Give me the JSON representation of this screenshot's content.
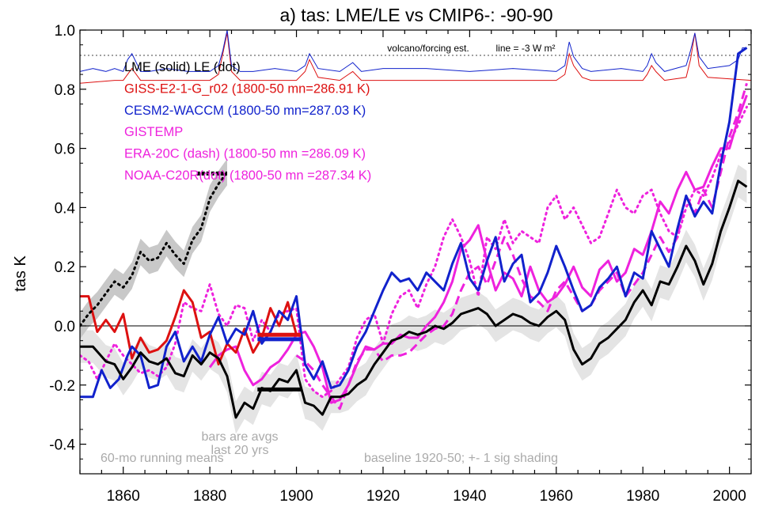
{
  "chart_data": {
    "type": "line",
    "title": "a) tas: LME/LE vs CMIP6-: -90-90",
    "ylabel": "tas K",
    "xlabel": "",
    "xlim": [
      1850,
      2005
    ],
    "ylim": [
      -0.5,
      1.0
    ],
    "x_ticks": [
      1860,
      1880,
      1900,
      1920,
      1940,
      1960,
      1980,
      2000
    ],
    "y_ticks": [
      -0.4,
      -0.2,
      0.0,
      0.2,
      0.4,
      0.6,
      0.8,
      1.0
    ],
    "y_tick_labels": [
      "-0.4",
      "-0.2",
      "0.0",
      "0.2",
      "0.4",
      "0.6",
      "0.8",
      "1.0"
    ],
    "volcano_label": "volcano/forcing est.",
    "volcano_line_label": "line = -3 W m²",
    "legend": [
      {
        "text": "LME (solid)   LE (dot)",
        "color": "#000000"
      },
      {
        "text": "GISS-E2-1-G_r02 (1800-50 mn=286.91 K)",
        "color": "#dd1111"
      },
      {
        "text": "CESM2-WACCM (1800-50 mn=287.03 K)",
        "color": "#1122cc"
      },
      {
        "text": "GISTEMP",
        "color": "#ee22dd"
      },
      {
        "text": "ERA-20C (dash) (1800-50 mn =286.09 K)",
        "color": "#ee22dd"
      },
      {
        "text": "NOAA-C20R(dot) (1800-50 mn =287.34 K)",
        "color": "#ee22dd"
      }
    ],
    "annotations": {
      "bars_line1": "bars are avgs",
      "bars_line2": "last 20 yrs",
      "running": "60-mo running means",
      "baseline": "baseline 1920-50; +- 1 sig shading"
    },
    "colors": {
      "lme": "#000000",
      "giss": "#dd1111",
      "cesm": "#1122cc",
      "obs": "#ee22dd",
      "shade_le": "#c8c8c8",
      "shade_lme": "#e4e4e4"
    },
    "series": [
      {
        "name": "LME",
        "style": "solid",
        "color": "#000000",
        "x": [
          1850,
          1853,
          1856,
          1858,
          1860,
          1862,
          1864,
          1866,
          1868,
          1870,
          1872,
          1874,
          1876,
          1878,
          1880,
          1882,
          1884,
          1886,
          1888,
          1890,
          1892,
          1894,
          1896,
          1898,
          1900,
          1902,
          1904,
          1906,
          1908,
          1910,
          1912,
          1914,
          1916,
          1918,
          1920,
          1922,
          1924,
          1926,
          1928,
          1930,
          1932,
          1934,
          1936,
          1938,
          1940,
          1942,
          1944,
          1946,
          1948,
          1950,
          1952,
          1954,
          1956,
          1958,
          1960,
          1962,
          1964,
          1966,
          1968,
          1970,
          1972,
          1974,
          1976,
          1978,
          1980,
          1982,
          1984,
          1986,
          1988,
          1990,
          1992,
          1994,
          1996,
          1998,
          2000,
          2002,
          2004
        ],
        "y": [
          -0.07,
          -0.07,
          -0.12,
          -0.13,
          -0.18,
          -0.14,
          -0.09,
          -0.12,
          -0.13,
          -0.11,
          -0.16,
          -0.17,
          -0.1,
          -0.13,
          -0.09,
          -0.11,
          -0.17,
          -0.31,
          -0.26,
          -0.28,
          -0.21,
          -0.22,
          -0.18,
          -0.19,
          -0.15,
          -0.26,
          -0.27,
          -0.3,
          -0.24,
          -0.24,
          -0.23,
          -0.2,
          -0.18,
          -0.13,
          -0.09,
          -0.05,
          -0.04,
          -0.02,
          -0.03,
          -0.02,
          0.0,
          -0.01,
          0.01,
          0.04,
          0.05,
          0.06,
          0.04,
          0.0,
          0.02,
          0.04,
          0.03,
          0.01,
          0.0,
          0.03,
          0.05,
          0.02,
          -0.08,
          -0.13,
          -0.11,
          -0.06,
          -0.04,
          -0.01,
          0.02,
          0.08,
          0.12,
          0.07,
          0.15,
          0.14,
          0.2,
          0.27,
          0.22,
          0.14,
          0.21,
          0.32,
          0.4,
          0.49,
          0.47
        ]
      },
      {
        "name": "LE",
        "style": "dot",
        "color": "#000000",
        "x": [
          1850,
          1852,
          1854,
          1856,
          1858,
          1860,
          1862,
          1864,
          1866,
          1868,
          1870,
          1872,
          1874,
          1876,
          1878,
          1880,
          1882,
          1884
        ],
        "y": [
          0.0,
          0.04,
          0.07,
          0.11,
          0.15,
          0.13,
          0.17,
          0.25,
          0.22,
          0.23,
          0.28,
          0.24,
          0.21,
          0.29,
          0.33,
          0.43,
          0.48,
          0.52
        ]
      },
      {
        "name": "GISS-E2-1-G_r02",
        "style": "solid",
        "color": "#dd1111",
        "x": [
          1850,
          1852,
          1854,
          1856,
          1858,
          1860,
          1862,
          1864,
          1866,
          1868,
          1870,
          1872,
          1874,
          1876,
          1878,
          1880,
          1882,
          1884,
          1886,
          1888,
          1890,
          1892,
          1894,
          1896,
          1898,
          1900
        ],
        "y": [
          0.1,
          0.1,
          -0.02,
          0.02,
          -0.02,
          0.04,
          -0.11,
          -0.04,
          -0.09,
          -0.08,
          -0.05,
          0.03,
          0.12,
          0.08,
          -0.04,
          -0.02,
          -0.13,
          -0.06,
          -0.09,
          -0.01,
          -0.09,
          -0.04,
          0.06,
          0.0,
          0.08,
          -0.03
        ]
      },
      {
        "name": "CESM2-WACCM",
        "style": "solid",
        "color": "#1122cc",
        "x": [
          1850,
          1853,
          1855,
          1857,
          1859,
          1861,
          1862,
          1864,
          1866,
          1868,
          1870,
          1872,
          1874,
          1876,
          1878,
          1880,
          1882,
          1884,
          1886,
          1888,
          1890,
          1892,
          1894,
          1896,
          1898,
          1900,
          1902,
          1904,
          1906,
          1908,
          1910,
          1912,
          1914,
          1916,
          1918,
          1920,
          1922,
          1924,
          1926,
          1928,
          1930,
          1932,
          1934,
          1936,
          1938,
          1940,
          1942,
          1944,
          1946,
          1948,
          1950,
          1952,
          1954,
          1956,
          1958,
          1960,
          1962,
          1964,
          1966,
          1968,
          1970,
          1972,
          1974,
          1976,
          1978,
          1980,
          1982,
          1984,
          1986,
          1988,
          1990,
          1992,
          1994,
          1996,
          1998,
          2000,
          2002,
          2004
        ],
        "y": [
          -0.24,
          -0.24,
          -0.15,
          -0.21,
          -0.18,
          -0.1,
          -0.07,
          -0.1,
          -0.21,
          -0.2,
          -0.07,
          -0.02,
          -0.12,
          -0.07,
          -0.12,
          -0.03,
          0.03,
          -0.06,
          -0.01,
          -0.03,
          0.05,
          -0.06,
          -0.02,
          0.05,
          0.02,
          0.1,
          -0.13,
          -0.18,
          -0.12,
          -0.21,
          -0.2,
          -0.15,
          -0.07,
          -0.02,
          0.05,
          0.12,
          0.18,
          0.15,
          0.16,
          0.12,
          0.18,
          0.15,
          0.12,
          0.21,
          0.28,
          0.16,
          0.12,
          0.22,
          0.3,
          0.15,
          0.21,
          0.24,
          0.08,
          0.11,
          0.18,
          0.27,
          0.2,
          0.12,
          0.05,
          0.07,
          0.13,
          0.16,
          0.2,
          0.1,
          0.18,
          0.16,
          0.32,
          0.26,
          0.2,
          0.33,
          0.44,
          0.37,
          0.42,
          0.38,
          0.55,
          0.69,
          0.92,
          0.94
        ]
      },
      {
        "name": "GISTEMP",
        "style": "solid",
        "color": "#ee22dd",
        "x": [
          1880,
          1882,
          1884,
          1886,
          1888,
          1890,
          1892,
          1894,
          1896,
          1898,
          1900,
          1902,
          1904,
          1906,
          1908,
          1910,
          1912,
          1914,
          1916,
          1918,
          1920,
          1922,
          1924,
          1926,
          1928,
          1930,
          1932,
          1934,
          1936,
          1938,
          1940,
          1942,
          1944,
          1946,
          1948,
          1950,
          1952,
          1954,
          1956,
          1958,
          1960,
          1962,
          1964,
          1966,
          1968,
          1970,
          1972,
          1974,
          1976,
          1978,
          1980,
          1982,
          1984,
          1986,
          1988,
          1990,
          1992,
          1994,
          1996,
          1998,
          2000,
          2002,
          2004
        ],
        "y": [
          -0.14,
          -0.1,
          -0.08,
          -0.07,
          -0.15,
          -0.2,
          -0.18,
          -0.14,
          -0.12,
          -0.08,
          -0.03,
          -0.02,
          -0.07,
          -0.14,
          -0.26,
          -0.25,
          -0.2,
          -0.13,
          -0.07,
          -0.08,
          -0.06,
          -0.06,
          -0.03,
          -0.04,
          -0.04,
          0.0,
          0.03,
          0.08,
          0.15,
          0.26,
          0.29,
          0.34,
          0.22,
          0.12,
          0.18,
          0.16,
          0.1,
          0.2,
          0.12,
          0.08,
          0.1,
          0.14,
          0.2,
          0.13,
          0.1,
          0.19,
          0.22,
          0.15,
          0.18,
          0.26,
          0.24,
          0.32,
          0.42,
          0.38,
          0.46,
          0.52,
          0.46,
          0.47,
          0.54,
          0.6,
          0.6,
          0.7,
          0.78
        ]
      },
      {
        "name": "ERA-20C",
        "style": "dash",
        "color": "#ee22dd",
        "x": [
          1900,
          1902,
          1904,
          1906,
          1908,
          1910,
          1912,
          1914,
          1916,
          1918,
          1920,
          1922,
          1924,
          1926,
          1928,
          1930,
          1932,
          1934,
          1936,
          1938,
          1940,
          1942,
          1944,
          1946,
          1948,
          1950,
          1952,
          1954,
          1956,
          1958,
          1960,
          1962,
          1964,
          1966,
          1968,
          1970,
          1972,
          1974,
          1976,
          1978,
          1980,
          1982,
          1984,
          1986,
          1988,
          1990,
          1992,
          1994,
          1996,
          1998,
          2000,
          2002,
          2004
        ],
        "y": [
          -0.1,
          -0.12,
          -0.15,
          -0.2,
          -0.24,
          -0.28,
          -0.2,
          -0.12,
          -0.08,
          -0.08,
          -0.12,
          -0.1,
          -0.1,
          -0.09,
          -0.06,
          -0.03,
          -0.01,
          0.0,
          0.04,
          0.12,
          0.18,
          0.2,
          0.14,
          0.22,
          0.3,
          0.24,
          0.16,
          0.1,
          0.08,
          0.05,
          0.12,
          0.15,
          0.1,
          0.05,
          0.07,
          0.12,
          0.15,
          0.18,
          0.1,
          0.14,
          0.18,
          0.24,
          0.3,
          0.25,
          0.3,
          0.44,
          0.38,
          0.46,
          0.4,
          0.52,
          0.64,
          0.72,
          0.82
        ]
      },
      {
        "name": "NOAA-C20R",
        "style": "dot",
        "color": "#ee22dd",
        "x": [
          1850,
          1852,
          1854,
          1856,
          1858,
          1860,
          1862,
          1864,
          1866,
          1868,
          1870,
          1872,
          1874,
          1876,
          1878,
          1880,
          1882,
          1884,
          1886,
          1888,
          1890,
          1892,
          1894,
          1896,
          1898,
          1900,
          1902,
          1904,
          1906,
          1908,
          1910,
          1912,
          1914,
          1916,
          1918,
          1920,
          1922,
          1924,
          1926,
          1928,
          1930,
          1932,
          1934,
          1936,
          1938,
          1940,
          1942,
          1944,
          1946,
          1948,
          1950,
          1952,
          1954,
          1956,
          1958,
          1960,
          1962,
          1964,
          1966,
          1968,
          1970,
          1972,
          1974,
          1976,
          1978,
          1980,
          1982,
          1984,
          1986,
          1988,
          1990,
          1992,
          1994,
          1996,
          1998,
          2000,
          2002,
          2004
        ],
        "y": [
          -0.1,
          -0.12,
          -0.18,
          -0.12,
          -0.06,
          -0.1,
          -0.13,
          -0.16,
          -0.15,
          -0.17,
          -0.14,
          -0.06,
          0.08,
          0.06,
          0.05,
          0.14,
          0.04,
          0.0,
          0.07,
          0.06,
          -0.05,
          0.02,
          -0.02,
          0.04,
          0.05,
          0.06,
          -0.18,
          -0.22,
          -0.24,
          -0.22,
          -0.18,
          -0.14,
          -0.04,
          0.02,
          0.04,
          -0.06,
          0.04,
          0.1,
          0.12,
          0.06,
          0.14,
          0.2,
          0.3,
          0.36,
          0.3,
          0.22,
          0.1,
          0.3,
          0.26,
          0.36,
          0.28,
          0.32,
          0.3,
          0.28,
          0.4,
          0.44,
          0.36,
          0.4,
          0.34,
          0.28,
          0.3,
          0.38,
          0.46,
          0.4,
          0.38,
          0.44,
          0.46,
          0.38,
          0.32,
          0.3,
          0.4,
          0.46,
          0.44,
          0.5,
          0.58,
          0.62,
          0.68,
          0.74
        ]
      },
      {
        "name": "GISS volcano/forcing",
        "style": "solid",
        "color": "#dd1111",
        "x": [
          1850,
          1858,
          1860,
          1861,
          1862,
          1864,
          1880,
          1882,
          1883,
          1884,
          1885,
          1887,
          1900,
          1902,
          1903,
          1905,
          1910,
          1912,
          1913,
          1915,
          1960,
          1962,
          1963,
          1964,
          1966,
          1968,
          1980,
          1981,
          1982,
          1983,
          1985,
          1990,
          1991,
          1992,
          1993,
          1995,
          2005
        ],
        "y": [
          0.82,
          0.83,
          0.83,
          0.85,
          0.87,
          0.83,
          0.83,
          0.85,
          0.92,
          0.99,
          0.86,
          0.83,
          0.83,
          0.86,
          0.9,
          0.84,
          0.83,
          0.85,
          0.86,
          0.83,
          0.83,
          0.85,
          0.92,
          0.88,
          0.84,
          0.83,
          0.83,
          0.85,
          0.88,
          0.86,
          0.83,
          0.84,
          0.9,
          0.99,
          0.88,
          0.84,
          0.83
        ]
      },
      {
        "name": "CESM volcano/forcing",
        "style": "solid",
        "color": "#1122cc",
        "x": [
          1850,
          1853,
          1856,
          1858,
          1860,
          1861,
          1862,
          1864,
          1866,
          1870,
          1875,
          1880,
          1882,
          1883,
          1884,
          1885,
          1887,
          1890,
          1895,
          1900,
          1902,
          1903,
          1905,
          1910,
          1912,
          1913,
          1915,
          1920,
          1930,
          1940,
          1950,
          1960,
          1962,
          1963,
          1964,
          1966,
          1968,
          1975,
          1980,
          1981,
          1982,
          1983,
          1985,
          1990,
          1991,
          1992,
          1993,
          1995,
          2000,
          2002,
          2003,
          2004
        ],
        "y": [
          0.86,
          0.87,
          0.86,
          0.87,
          0.86,
          0.9,
          0.92,
          0.86,
          0.86,
          0.87,
          0.86,
          0.86,
          0.88,
          0.93,
          1.0,
          0.88,
          0.86,
          0.86,
          0.87,
          0.86,
          0.88,
          0.92,
          0.87,
          0.86,
          0.88,
          0.89,
          0.86,
          0.87,
          0.87,
          0.86,
          0.87,
          0.86,
          0.88,
          0.96,
          0.91,
          0.87,
          0.86,
          0.87,
          0.86,
          0.88,
          0.92,
          0.89,
          0.86,
          0.88,
          0.93,
          0.99,
          0.91,
          0.87,
          0.88,
          0.9,
          0.94,
          0.94
        ]
      }
    ],
    "bars": [
      {
        "name": "GISS-E2-1-G_r02",
        "color": "#dd1111",
        "x": [
          1891,
          1901
        ],
        "y": -0.03
      },
      {
        "name": "CESM2-WACCM",
        "color": "#1122cc",
        "x": [
          1891,
          1901
        ],
        "y": -0.045
      },
      {
        "name": "LME",
        "color": "#000000",
        "x": [
          1891,
          1901
        ],
        "y": -0.215
      },
      {
        "name": "LE",
        "color": "#000000",
        "x": [
          1877,
          1884
        ],
        "y": 0.515
      }
    ]
  }
}
